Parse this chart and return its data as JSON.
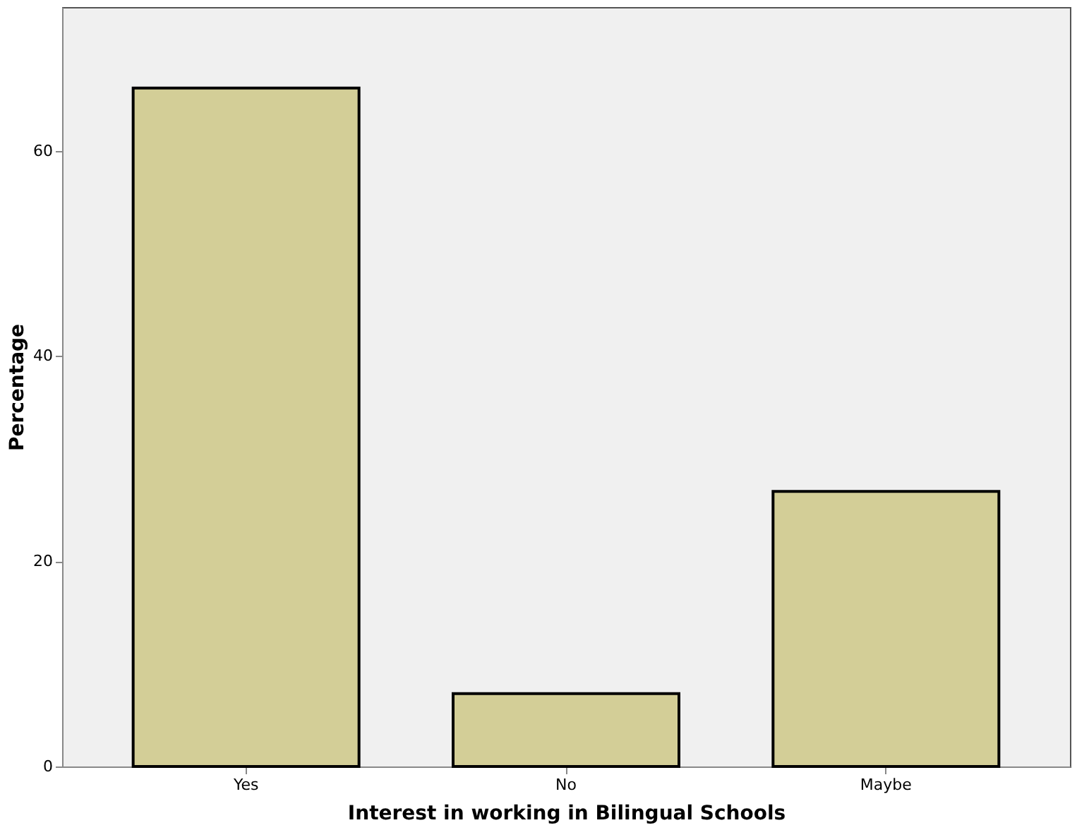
{
  "chart_data": {
    "type": "bar",
    "xlabel": "Interest in working in Bilingual Schools",
    "ylabel": "Percentage",
    "categories": [
      "Yes",
      "No",
      "Maybe"
    ],
    "values": [
      66.1,
      7.1,
      26.8
    ],
    "color": "#d3ce97",
    "ylim": [
      0,
      74
    ],
    "yticks": [
      0,
      20,
      40,
      60
    ],
    "grid": false
  }
}
